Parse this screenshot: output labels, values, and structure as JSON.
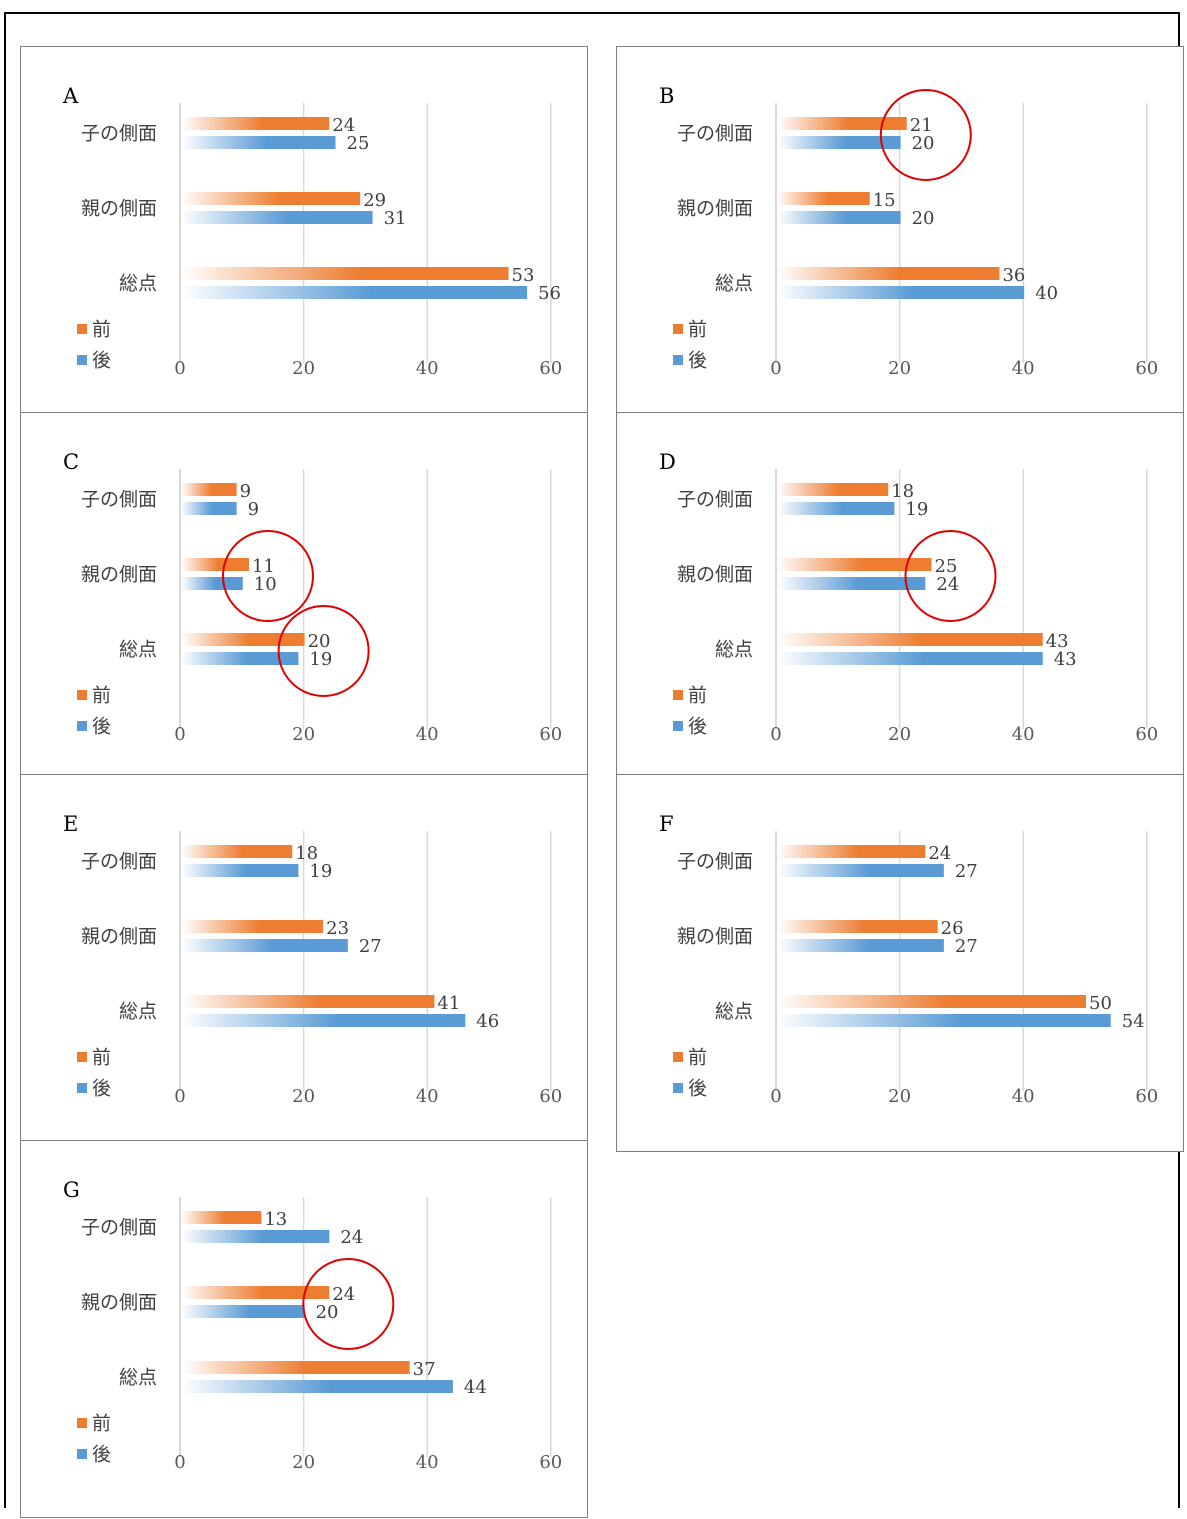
{
  "colors": {
    "before": "#ed7d31",
    "after": "#5b9bd5",
    "highlight": "#e00000",
    "grid": "#d9d9d9"
  },
  "legend": {
    "before": "前",
    "after": "後"
  },
  "chart_data": [
    {
      "type": "bar",
      "title": "A",
      "categories": [
        "子の側面",
        "親の側面",
        "総点"
      ],
      "xlim": [
        0,
        60
      ],
      "xticks": [
        0,
        20,
        40,
        60
      ],
      "legend_position": "bottom-left",
      "series": [
        {
          "name": "前",
          "values": [
            24,
            29,
            53
          ]
        },
        {
          "name": "後",
          "values": [
            25,
            31,
            56
          ]
        }
      ],
      "highlights": []
    },
    {
      "type": "bar",
      "title": "B",
      "categories": [
        "子の側面",
        "親の側面",
        "総点"
      ],
      "xlim": [
        0,
        60
      ],
      "xticks": [
        0,
        20,
        40,
        60
      ],
      "legend_position": "bottom-left",
      "series": [
        {
          "name": "前",
          "values": [
            21,
            15,
            36
          ]
        },
        {
          "name": "後",
          "values": [
            20,
            20,
            40
          ]
        }
      ],
      "highlights": [
        "子の側面"
      ]
    },
    {
      "type": "bar",
      "title": "C",
      "categories": [
        "子の側面",
        "親の側面",
        "総点"
      ],
      "xlim": [
        0,
        60
      ],
      "xticks": [
        0,
        20,
        40,
        60
      ],
      "legend_position": "bottom-left",
      "series": [
        {
          "name": "前",
          "values": [
            9,
            11,
            20
          ]
        },
        {
          "name": "後",
          "values": [
            9,
            10,
            19
          ]
        }
      ],
      "highlights": [
        "親の側面",
        "総点"
      ]
    },
    {
      "type": "bar",
      "title": "D",
      "categories": [
        "子の側面",
        "親の側面",
        "総点"
      ],
      "xlim": [
        0,
        60
      ],
      "xticks": [
        0,
        20,
        40,
        60
      ],
      "legend_position": "bottom-left",
      "series": [
        {
          "name": "前",
          "values": [
            18,
            25,
            43
          ]
        },
        {
          "name": "後",
          "values": [
            19,
            24,
            43
          ]
        }
      ],
      "highlights": [
        "親の側面"
      ]
    },
    {
      "type": "bar",
      "title": "E",
      "categories": [
        "子の側面",
        "親の側面",
        "総点"
      ],
      "xlim": [
        0,
        60
      ],
      "xticks": [
        0,
        20,
        40,
        60
      ],
      "legend_position": "bottom-left",
      "series": [
        {
          "name": "前",
          "values": [
            18,
            23,
            41
          ]
        },
        {
          "name": "後",
          "values": [
            19,
            27,
            46
          ]
        }
      ],
      "highlights": []
    },
    {
      "type": "bar",
      "title": "F",
      "categories": [
        "子の側面",
        "親の側面",
        "総点"
      ],
      "xlim": [
        0,
        60
      ],
      "xticks": [
        0,
        20,
        40,
        60
      ],
      "legend_position": "bottom-left",
      "series": [
        {
          "name": "前",
          "values": [
            24,
            26,
            50
          ]
        },
        {
          "name": "後",
          "values": [
            27,
            27,
            54
          ]
        }
      ],
      "highlights": []
    },
    {
      "type": "bar",
      "title": "G",
      "categories": [
        "子の側面",
        "親の側面",
        "総点"
      ],
      "xlim": [
        0,
        60
      ],
      "xticks": [
        0,
        20,
        40,
        60
      ],
      "legend_position": "bottom-left",
      "series": [
        {
          "name": "前",
          "values": [
            13,
            24,
            37
          ]
        },
        {
          "name": "後",
          "values": [
            24,
            20,
            44
          ]
        }
      ],
      "highlights": [
        "親の側面"
      ]
    }
  ]
}
